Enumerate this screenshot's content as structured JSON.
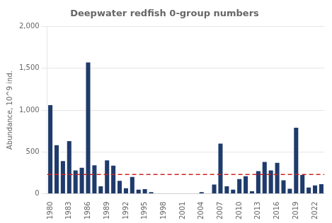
{
  "chart_data": {
    "type": "bar",
    "title": "Deepwater redfish 0-group numbers",
    "ylabel": "Abundance, 10^9 ind.",
    "categories": [
      "1980",
      null,
      null,
      "1983",
      null,
      null,
      "1986",
      null,
      null,
      "1989",
      null,
      null,
      "1992",
      null,
      null,
      "1995",
      null,
      null,
      "1998",
      null,
      null,
      "2001",
      null,
      null,
      "2004",
      null,
      null,
      "2007",
      null,
      null,
      "2010",
      null,
      null,
      "2013",
      null,
      null,
      "2016",
      null,
      null,
      "2019",
      null,
      null,
      "2022",
      null
    ],
    "values": [
      1060,
      580,
      390,
      630,
      280,
      310,
      1570,
      340,
      90,
      400,
      335,
      155,
      65,
      200,
      50,
      55,
      20,
      5,
      5,
      5,
      5,
      5,
      5,
      5,
      20,
      5,
      110,
      600,
      90,
      50,
      175,
      210,
      30,
      270,
      380,
      280,
      370,
      160,
      60,
      790,
      225,
      75,
      100,
      115
    ],
    "color": "#1F3B6B",
    "hline": {
      "value": 230,
      "color": "#CC2222",
      "line_style": "dashed"
    },
    "ylim": [
      0,
      2000
    ],
    "yticks": [
      0,
      500,
      1000,
      1500,
      2000
    ],
    "grid": true
  }
}
